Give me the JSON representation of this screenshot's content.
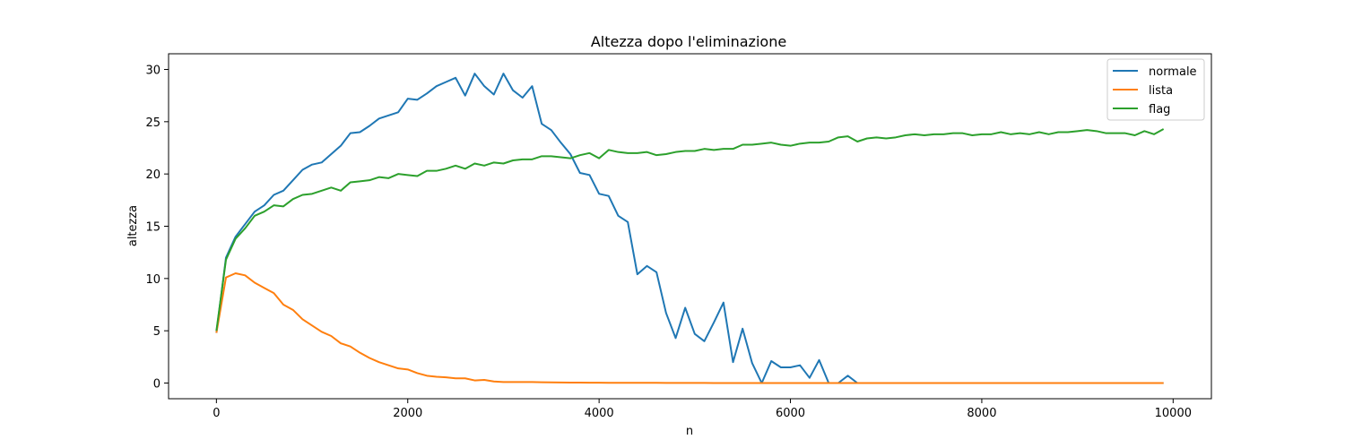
{
  "chart_data": {
    "type": "line",
    "title": "Altezza dopo l'eliminazione",
    "xlabel": "n",
    "ylabel": "altezza",
    "xlim": [
      -500,
      10400
    ],
    "ylim": [
      -1.5,
      31.5
    ],
    "xticks": [
      0,
      2000,
      4000,
      6000,
      8000,
      10000
    ],
    "yticks": [
      0,
      5,
      10,
      15,
      20,
      25,
      30
    ],
    "grid": false,
    "legend_position": "top-right",
    "x_start": 0,
    "x_step": 100,
    "series": [
      {
        "name": "normale",
        "color": "#1f77b4",
        "values": [
          4.8,
          12.0,
          14.0,
          15.2,
          16.4,
          17.0,
          18.0,
          18.4,
          19.4,
          20.4,
          20.9,
          21.1,
          21.9,
          22.7,
          23.9,
          24.0,
          24.6,
          25.3,
          25.6,
          25.9,
          27.2,
          27.1,
          27.7,
          28.4,
          28.8,
          29.2,
          27.5,
          29.6,
          28.4,
          27.6,
          29.6,
          28.0,
          27.3,
          28.4,
          24.8,
          24.2,
          23.0,
          21.9,
          20.1,
          19.9,
          18.1,
          17.9,
          16.0,
          15.4,
          10.4,
          11.2,
          10.6,
          6.7,
          4.3,
          7.2,
          4.7,
          4.0,
          5.8,
          7.7,
          2.0,
          5.2,
          1.9,
          0.0,
          2.1,
          1.5,
          1.5,
          1.7,
          0.5,
          2.2,
          0.0,
          0.0,
          0.7,
          0.0,
          0.0,
          0.0,
          0.0,
          0.0,
          0.0,
          0.0,
          0.0,
          0.0,
          0.0,
          0.0,
          0.0,
          0.0,
          0.0,
          0.0,
          0.0,
          0.0,
          0.0,
          0.0,
          0.0,
          0.0,
          0.0,
          0.0,
          0.0,
          0.0,
          0.0,
          0.0,
          0.0,
          0.0,
          0.0,
          0.0,
          0.0,
          0.0
        ]
      },
      {
        "name": "lista",
        "color": "#ff7f0e",
        "values": [
          4.8,
          10.1,
          10.5,
          10.3,
          9.6,
          9.1,
          8.6,
          7.5,
          7.0,
          6.1,
          5.5,
          4.9,
          4.5,
          3.8,
          3.5,
          2.9,
          2.4,
          2.0,
          1.7,
          1.4,
          1.3,
          0.95,
          0.7,
          0.6,
          0.55,
          0.45,
          0.45,
          0.25,
          0.3,
          0.15,
          0.1,
          0.1,
          0.1,
          0.1,
          0.08,
          0.06,
          0.05,
          0.04,
          0.04,
          0.03,
          0.03,
          0.02,
          0.02,
          0.02,
          0.02,
          0.02,
          0.02,
          0.01,
          0.01,
          0.01,
          0.01,
          0.01,
          0.0,
          0.0,
          0.0,
          0.0,
          0.0,
          0.0,
          0.0,
          0.0,
          0.0,
          0.0,
          0.0,
          0.0,
          0.0,
          0.0,
          0.0,
          0.0,
          0.0,
          0.0,
          0.0,
          0.0,
          0.0,
          0.0,
          0.0,
          0.0,
          0.0,
          0.0,
          0.0,
          0.0,
          0.0,
          0.0,
          0.0,
          0.0,
          0.0,
          0.0,
          0.0,
          0.0,
          0.0,
          0.0,
          0.0,
          0.0,
          0.0,
          0.0,
          0.0,
          0.0,
          0.0,
          0.0,
          0.0,
          0.0
        ]
      },
      {
        "name": "flag",
        "color": "#2ca02c",
        "values": [
          5.0,
          11.8,
          13.8,
          14.8,
          16.0,
          16.4,
          17.0,
          16.9,
          17.6,
          18.0,
          18.1,
          18.4,
          18.7,
          18.4,
          19.2,
          19.3,
          19.4,
          19.7,
          19.6,
          20.0,
          19.9,
          19.8,
          20.3,
          20.3,
          20.5,
          20.8,
          20.5,
          21.0,
          20.8,
          21.1,
          21.0,
          21.3,
          21.4,
          21.4,
          21.7,
          21.7,
          21.6,
          21.5,
          21.8,
          22.0,
          21.5,
          22.3,
          22.1,
          22.0,
          22.0,
          22.1,
          21.8,
          21.9,
          22.1,
          22.2,
          22.2,
          22.4,
          22.3,
          22.4,
          22.4,
          22.8,
          22.8,
          22.9,
          23.0,
          22.8,
          22.7,
          22.9,
          23.0,
          23.0,
          23.1,
          23.5,
          23.6,
          23.1,
          23.4,
          23.5,
          23.4,
          23.5,
          23.7,
          23.8,
          23.7,
          23.8,
          23.8,
          23.9,
          23.9,
          23.7,
          23.8,
          23.8,
          24.0,
          23.8,
          23.9,
          23.8,
          24.0,
          23.8,
          24.0,
          24.0,
          24.1,
          24.2,
          24.1,
          23.9,
          23.9,
          23.9,
          23.7,
          24.1,
          23.8,
          24.3
        ]
      }
    ]
  }
}
